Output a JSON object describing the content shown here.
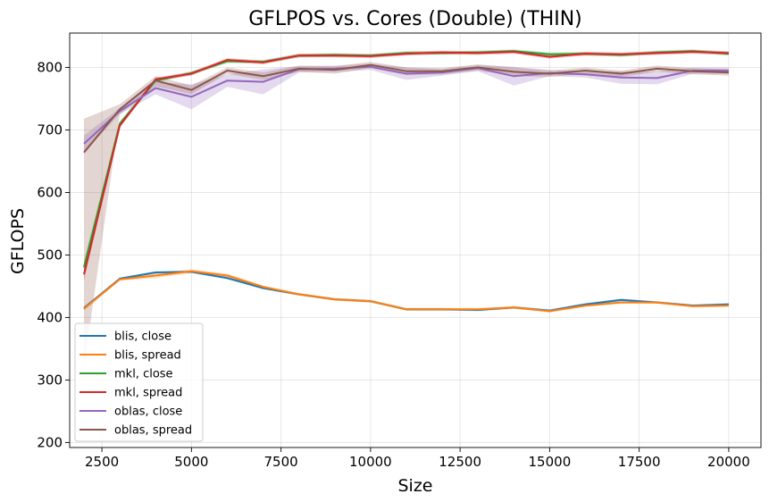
{
  "chart_data": {
    "type": "line",
    "title": "GFLPOS vs. Cores (Double) (THIN)",
    "xlabel": "Size",
    "ylabel": "GFLOPS",
    "xlim": [
      1600,
      20900
    ],
    "ylim": [
      192,
      855
    ],
    "xticks": [
      2500,
      5000,
      7500,
      10000,
      12500,
      15000,
      17500,
      20000
    ],
    "yticks": [
      200,
      300,
      400,
      500,
      600,
      700,
      800
    ],
    "grid": true,
    "legend_position": "lower-left",
    "x": [
      2000,
      3000,
      4000,
      5000,
      6000,
      7000,
      8000,
      9000,
      10000,
      11000,
      12000,
      13000,
      14000,
      15000,
      16000,
      17000,
      18000,
      19000,
      20000
    ],
    "series": [
      {
        "name": "blis, close",
        "color": "#1f77b4",
        "values": [
          415,
          462,
          472,
          473,
          463,
          447,
          437,
          429,
          426,
          413,
          413,
          412,
          416,
          411,
          421,
          428,
          424,
          419,
          421
        ],
        "lower": [
          413,
          460,
          470,
          471,
          461,
          445,
          435,
          427,
          424,
          411,
          411,
          410,
          414,
          409,
          419,
          426,
          422,
          417,
          419
        ],
        "upper": [
          417,
          464,
          474,
          475,
          465,
          449,
          439,
          431,
          428,
          415,
          415,
          414,
          418,
          413,
          423,
          430,
          426,
          421,
          423
        ]
      },
      {
        "name": "blis, spread",
        "color": "#ff7f0e",
        "values": [
          414,
          461,
          467,
          474,
          467,
          449,
          437,
          429,
          426,
          413,
          413,
          413,
          416,
          410,
          419,
          424,
          424,
          418,
          419
        ],
        "lower": [
          411,
          459,
          463,
          471,
          464,
          447,
          435,
          427,
          424,
          411,
          411,
          411,
          414,
          408,
          417,
          422,
          422,
          416,
          417
        ],
        "upper": [
          417,
          463,
          471,
          477,
          470,
          451,
          439,
          431,
          428,
          415,
          415,
          415,
          418,
          412,
          421,
          426,
          426,
          420,
          421
        ]
      },
      {
        "name": "mkl, close",
        "color": "#2ca02c",
        "values": [
          480,
          710,
          779,
          791,
          810,
          809,
          819,
          820,
          819,
          823,
          823,
          824,
          826,
          821,
          822,
          820,
          824,
          826,
          822
        ],
        "lower": [
          470,
          706,
          776,
          788,
          807,
          806,
          816,
          817,
          816,
          820,
          820,
          821,
          823,
          818,
          819,
          817,
          821,
          823,
          819
        ],
        "upper": [
          490,
          714,
          782,
          794,
          813,
          812,
          822,
          823,
          822,
          826,
          826,
          827,
          829,
          824,
          825,
          823,
          827,
          829,
          825
        ]
      },
      {
        "name": "mkl, spread",
        "color": "#d62728",
        "values": [
          469,
          707,
          781,
          790,
          812,
          808,
          819,
          819,
          818,
          822,
          824,
          823,
          825,
          817,
          822,
          821,
          823,
          825,
          823
        ],
        "lower": [
          458,
          703,
          778,
          787,
          809,
          805,
          816,
          816,
          815,
          819,
          821,
          820,
          822,
          814,
          819,
          818,
          820,
          822,
          820
        ],
        "upper": [
          480,
          711,
          784,
          793,
          815,
          811,
          822,
          822,
          821,
          825,
          827,
          826,
          828,
          820,
          825,
          824,
          826,
          828,
          826
        ]
      },
      {
        "name": "oblas, close",
        "color": "#9467bd",
        "values": [
          678,
          730,
          767,
          753,
          779,
          777,
          797,
          798,
          801,
          790,
          792,
          799,
          786,
          791,
          789,
          784,
          783,
          795,
          795
        ],
        "lower": [
          665,
          725,
          757,
          733,
          769,
          757,
          792,
          793,
          796,
          780,
          787,
          794,
          771,
          786,
          784,
          774,
          773,
          790,
          790
        ],
        "upper": [
          691,
          735,
          777,
          773,
          789,
          797,
          802,
          803,
          806,
          800,
          797,
          804,
          801,
          796,
          794,
          794,
          793,
          800,
          800
        ]
      },
      {
        "name": "oblas, spread",
        "color": "#8c564b",
        "values": [
          664,
          733,
          779,
          764,
          795,
          786,
          798,
          796,
          804,
          794,
          794,
          800,
          793,
          790,
          795,
          790,
          798,
          794,
          792
        ],
        "lower": [
          320,
          725,
          770,
          757,
          790,
          780,
          793,
          790,
          799,
          788,
          789,
          795,
          786,
          785,
          790,
          785,
          793,
          789,
          787
        ],
        "upper": [
          718,
          741,
          786,
          771,
          800,
          792,
          803,
          802,
          809,
          800,
          799,
          805,
          800,
          795,
          800,
          795,
          803,
          799,
          797
        ]
      }
    ]
  }
}
